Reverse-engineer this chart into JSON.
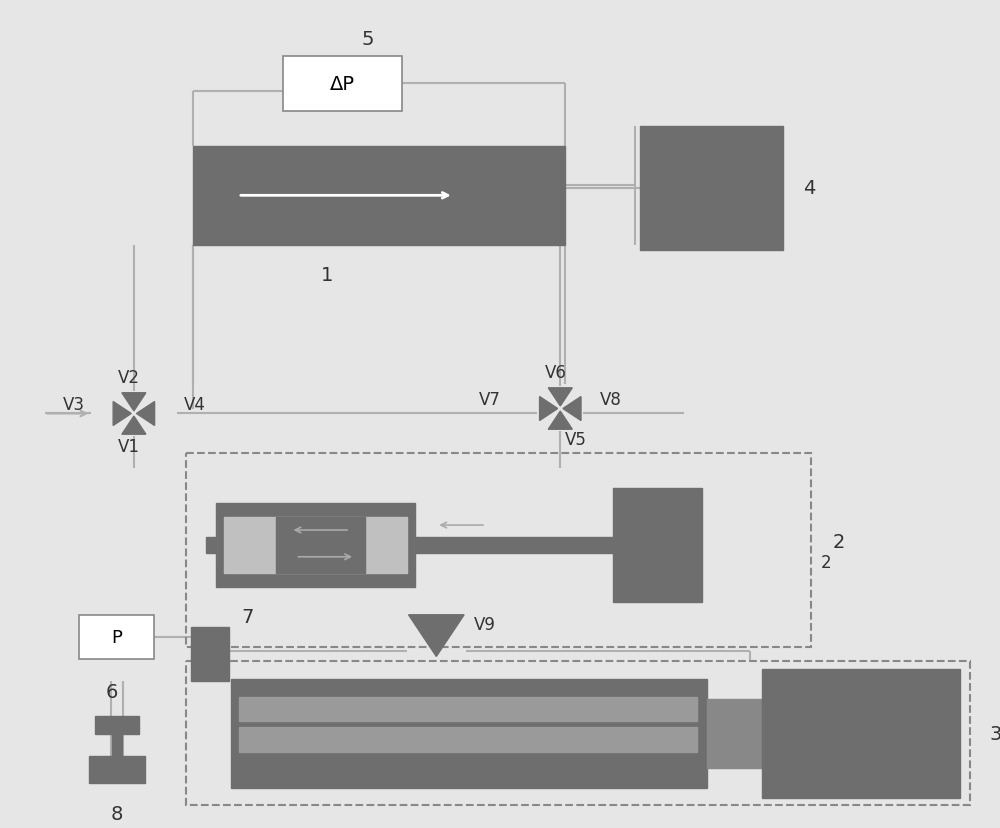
{
  "bg_color": "#e6e6e6",
  "gray": "#6e6e6e",
  "gray2": "#808080",
  "line_color": "#b0b0b0",
  "white": "#ffffff",
  "text_color": "#333333",
  "dashed_color": "#888888",
  "labelDeltaP": "ΔP",
  "labelP": "P",
  "label1": "1",
  "label2": "2",
  "label3": "3",
  "label4": "4",
  "label5": "5",
  "label6": "6",
  "label7": "7",
  "label8": "8",
  "labelV1": "V1",
  "labelV2": "V2",
  "labelV3": "V3",
  "labelV4": "V4",
  "labelV5": "V5",
  "labelV6": "V6",
  "labelV7": "V7",
  "labelV8": "V8",
  "labelV9": "V9"
}
